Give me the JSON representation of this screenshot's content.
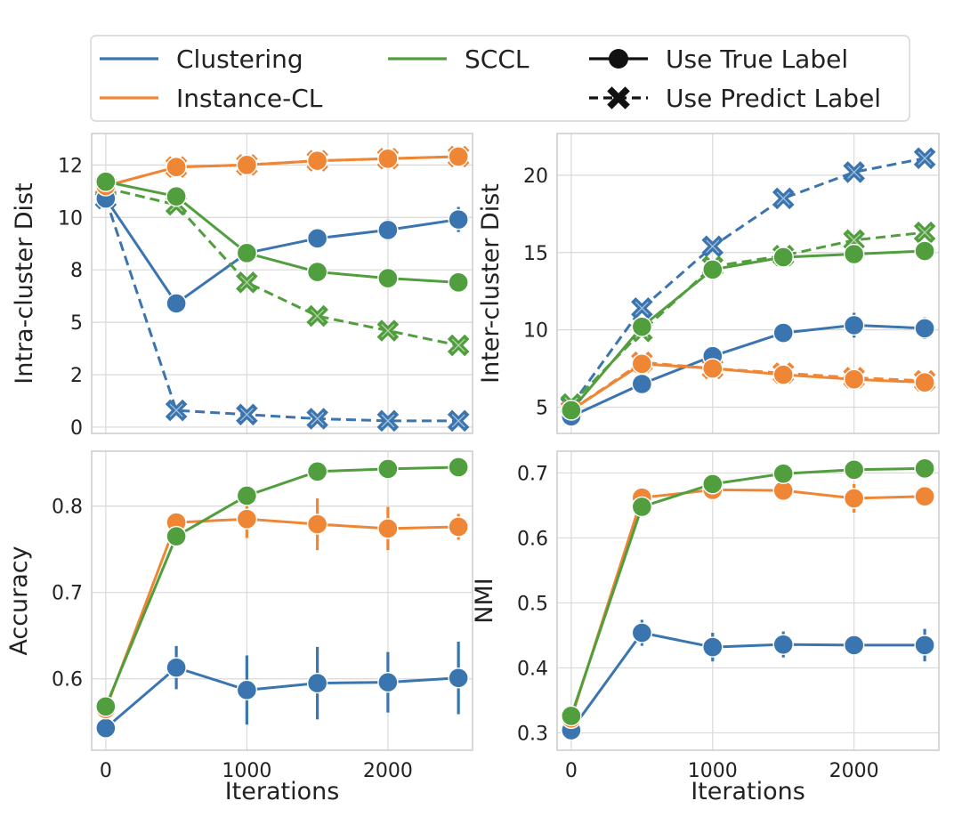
{
  "colors": {
    "Clustering": "#3b75af",
    "Instance-CL": "#ef8636",
    "SCCL": "#519e3e",
    "legend_marker": "#111111"
  },
  "legend": {
    "methods": [
      "Clustering",
      "Instance-CL",
      "SCCL"
    ],
    "styles": [
      {
        "label": "Use True Label",
        "marker": "circle",
        "line": "solid"
      },
      {
        "label": "Use Predict Label",
        "marker": "x",
        "line": "dashed"
      }
    ]
  },
  "chart_data": [
    {
      "type": "line",
      "xlabel": "",
      "ylabel": "Intra-cluster Dist",
      "x": [
        0,
        500,
        1000,
        1500,
        2000,
        2500
      ],
      "xticks": [],
      "yticks": [
        "0",
        "2",
        "5",
        "8",
        "10",
        "12"
      ],
      "yticks_values": [
        0,
        2.5,
        5,
        7.5,
        10,
        12.5
      ],
      "ylim": [
        -0.3,
        14.0
      ],
      "xlim": [
        -100,
        2600
      ],
      "series": [
        {
          "method": "Clustering",
          "style": "true",
          "values": [
            10.9,
            5.9,
            8.3,
            9.0,
            9.4,
            9.9
          ],
          "err": [
            0.2,
            0.2,
            0.2,
            0.3,
            0.5,
            0.6
          ]
        },
        {
          "method": "Clustering",
          "style": "pred",
          "values": [
            10.9,
            0.8,
            0.6,
            0.4,
            0.3,
            0.3
          ],
          "err": [
            0,
            0,
            0,
            0,
            0,
            0
          ]
        },
        {
          "method": "Instance-CL",
          "style": "true",
          "values": [
            11.5,
            12.4,
            12.5,
            12.7,
            12.8,
            12.9
          ],
          "err": [
            0,
            0,
            0,
            0,
            0,
            0
          ]
        },
        {
          "method": "Instance-CL",
          "style": "pred",
          "values": [
            11.5,
            12.4,
            12.5,
            12.7,
            12.8,
            12.9
          ],
          "err": [
            0,
            0,
            0,
            0,
            0,
            0
          ]
        },
        {
          "method": "SCCL",
          "style": "true",
          "values": [
            11.7,
            11.0,
            8.3,
            7.4,
            7.1,
            6.9
          ],
          "err": [
            0,
            0,
            0,
            0,
            0,
            0
          ]
        },
        {
          "method": "SCCL",
          "style": "pred",
          "values": [
            11.4,
            10.6,
            6.9,
            5.3,
            4.6,
            3.9
          ],
          "err": [
            0,
            0,
            0,
            0,
            0,
            0
          ]
        }
      ]
    },
    {
      "type": "line",
      "xlabel": "",
      "ylabel": "Inter-cluster Dist",
      "x": [
        0,
        500,
        1000,
        1500,
        2000,
        2500
      ],
      "xticks": [],
      "yticks": [
        "5",
        "10",
        "15",
        "20"
      ],
      "yticks_values": [
        5,
        10,
        15,
        20
      ],
      "ylim": [
        3.3,
        22.7
      ],
      "xlim": [
        -100,
        2600
      ],
      "series": [
        {
          "method": "Clustering",
          "style": "true",
          "values": [
            4.4,
            6.5,
            8.3,
            9.8,
            10.3,
            10.1
          ],
          "err": [
            0,
            0.2,
            0.3,
            0.6,
            0.8,
            0.7
          ]
        },
        {
          "method": "Clustering",
          "style": "pred",
          "values": [
            5.1,
            11.4,
            15.4,
            18.5,
            20.2,
            21.1
          ],
          "err": [
            0,
            0,
            0,
            0,
            0,
            0
          ]
        },
        {
          "method": "Instance-CL",
          "style": "true",
          "values": [
            4.8,
            7.8,
            7.5,
            7.1,
            6.8,
            6.6
          ],
          "err": [
            0,
            0,
            0,
            0,
            0,
            0
          ]
        },
        {
          "method": "Instance-CL",
          "style": "pred",
          "values": [
            4.8,
            7.9,
            7.5,
            7.2,
            6.9,
            6.7
          ],
          "err": [
            0,
            0,
            0,
            0,
            0,
            0
          ]
        },
        {
          "method": "SCCL",
          "style": "true",
          "values": [
            4.8,
            10.2,
            13.9,
            14.7,
            14.9,
            15.1
          ],
          "err": [
            0,
            0,
            0,
            0,
            0,
            0
          ]
        },
        {
          "method": "SCCL",
          "style": "pred",
          "values": [
            5.2,
            9.9,
            14.1,
            14.8,
            15.8,
            16.3
          ],
          "err": [
            0,
            0,
            0,
            0,
            0,
            0
          ]
        }
      ]
    },
    {
      "type": "line",
      "xlabel": "Iterations",
      "ylabel": "Accuracy",
      "x": [
        0,
        500,
        1000,
        1500,
        2000,
        2500
      ],
      "xticks": [
        "0",
        "1000",
        "2000"
      ],
      "xticks_values": [
        0,
        1000,
        2000
      ],
      "yticks": [
        "0.6",
        "0.7",
        "0.8"
      ],
      "yticks_values": [
        0.6,
        0.7,
        0.8
      ],
      "ylim": [
        0.5173,
        0.8635
      ],
      "xlim": [
        -100,
        2600
      ],
      "series": [
        {
          "method": "Clustering",
          "style": "true",
          "values": [
            0.543,
            0.613,
            0.587,
            0.595,
            0.596,
            0.601
          ],
          "err": [
            0.008,
            0.025,
            0.04,
            0.042,
            0.035,
            0.042
          ]
        },
        {
          "method": "Instance-CL",
          "style": "true",
          "values": [
            0.565,
            0.781,
            0.785,
            0.779,
            0.774,
            0.776
          ],
          "err": [
            0.005,
            0.008,
            0.022,
            0.03,
            0.025,
            0.015
          ]
        },
        {
          "method": "SCCL",
          "style": "true",
          "values": [
            0.568,
            0.765,
            0.812,
            0.84,
            0.843,
            0.845
          ],
          "err": [
            0,
            0,
            0,
            0,
            0,
            0
          ]
        }
      ]
    },
    {
      "type": "line",
      "xlabel": "Iterations",
      "ylabel": "NMI",
      "x": [
        0,
        500,
        1000,
        1500,
        2000,
        2500
      ],
      "xticks": [
        "0",
        "1000",
        "2000"
      ],
      "xticks_values": [
        0,
        1000,
        2000
      ],
      "yticks": [
        "0.3",
        "0.4",
        "0.5",
        "0.6",
        "0.7"
      ],
      "yticks_values": [
        0.3,
        0.4,
        0.5,
        0.6,
        0.7
      ],
      "ylim": [
        0.2732,
        0.7335
      ],
      "xlim": [
        -100,
        2600
      ],
      "series": [
        {
          "method": "Clustering",
          "style": "true",
          "values": [
            0.304,
            0.454,
            0.432,
            0.436,
            0.435,
            0.435
          ],
          "err": [
            0.004,
            0.02,
            0.022,
            0.02,
            0.012,
            0.025
          ]
        },
        {
          "method": "Instance-CL",
          "style": "true",
          "values": [
            0.322,
            0.662,
            0.674,
            0.673,
            0.661,
            0.664
          ],
          "err": [
            0,
            0.005,
            0.008,
            0.01,
            0.022,
            0.015
          ]
        },
        {
          "method": "SCCL",
          "style": "true",
          "values": [
            0.326,
            0.648,
            0.683,
            0.699,
            0.705,
            0.707
          ],
          "err": [
            0,
            0,
            0,
            0,
            0,
            0
          ]
        }
      ]
    }
  ]
}
